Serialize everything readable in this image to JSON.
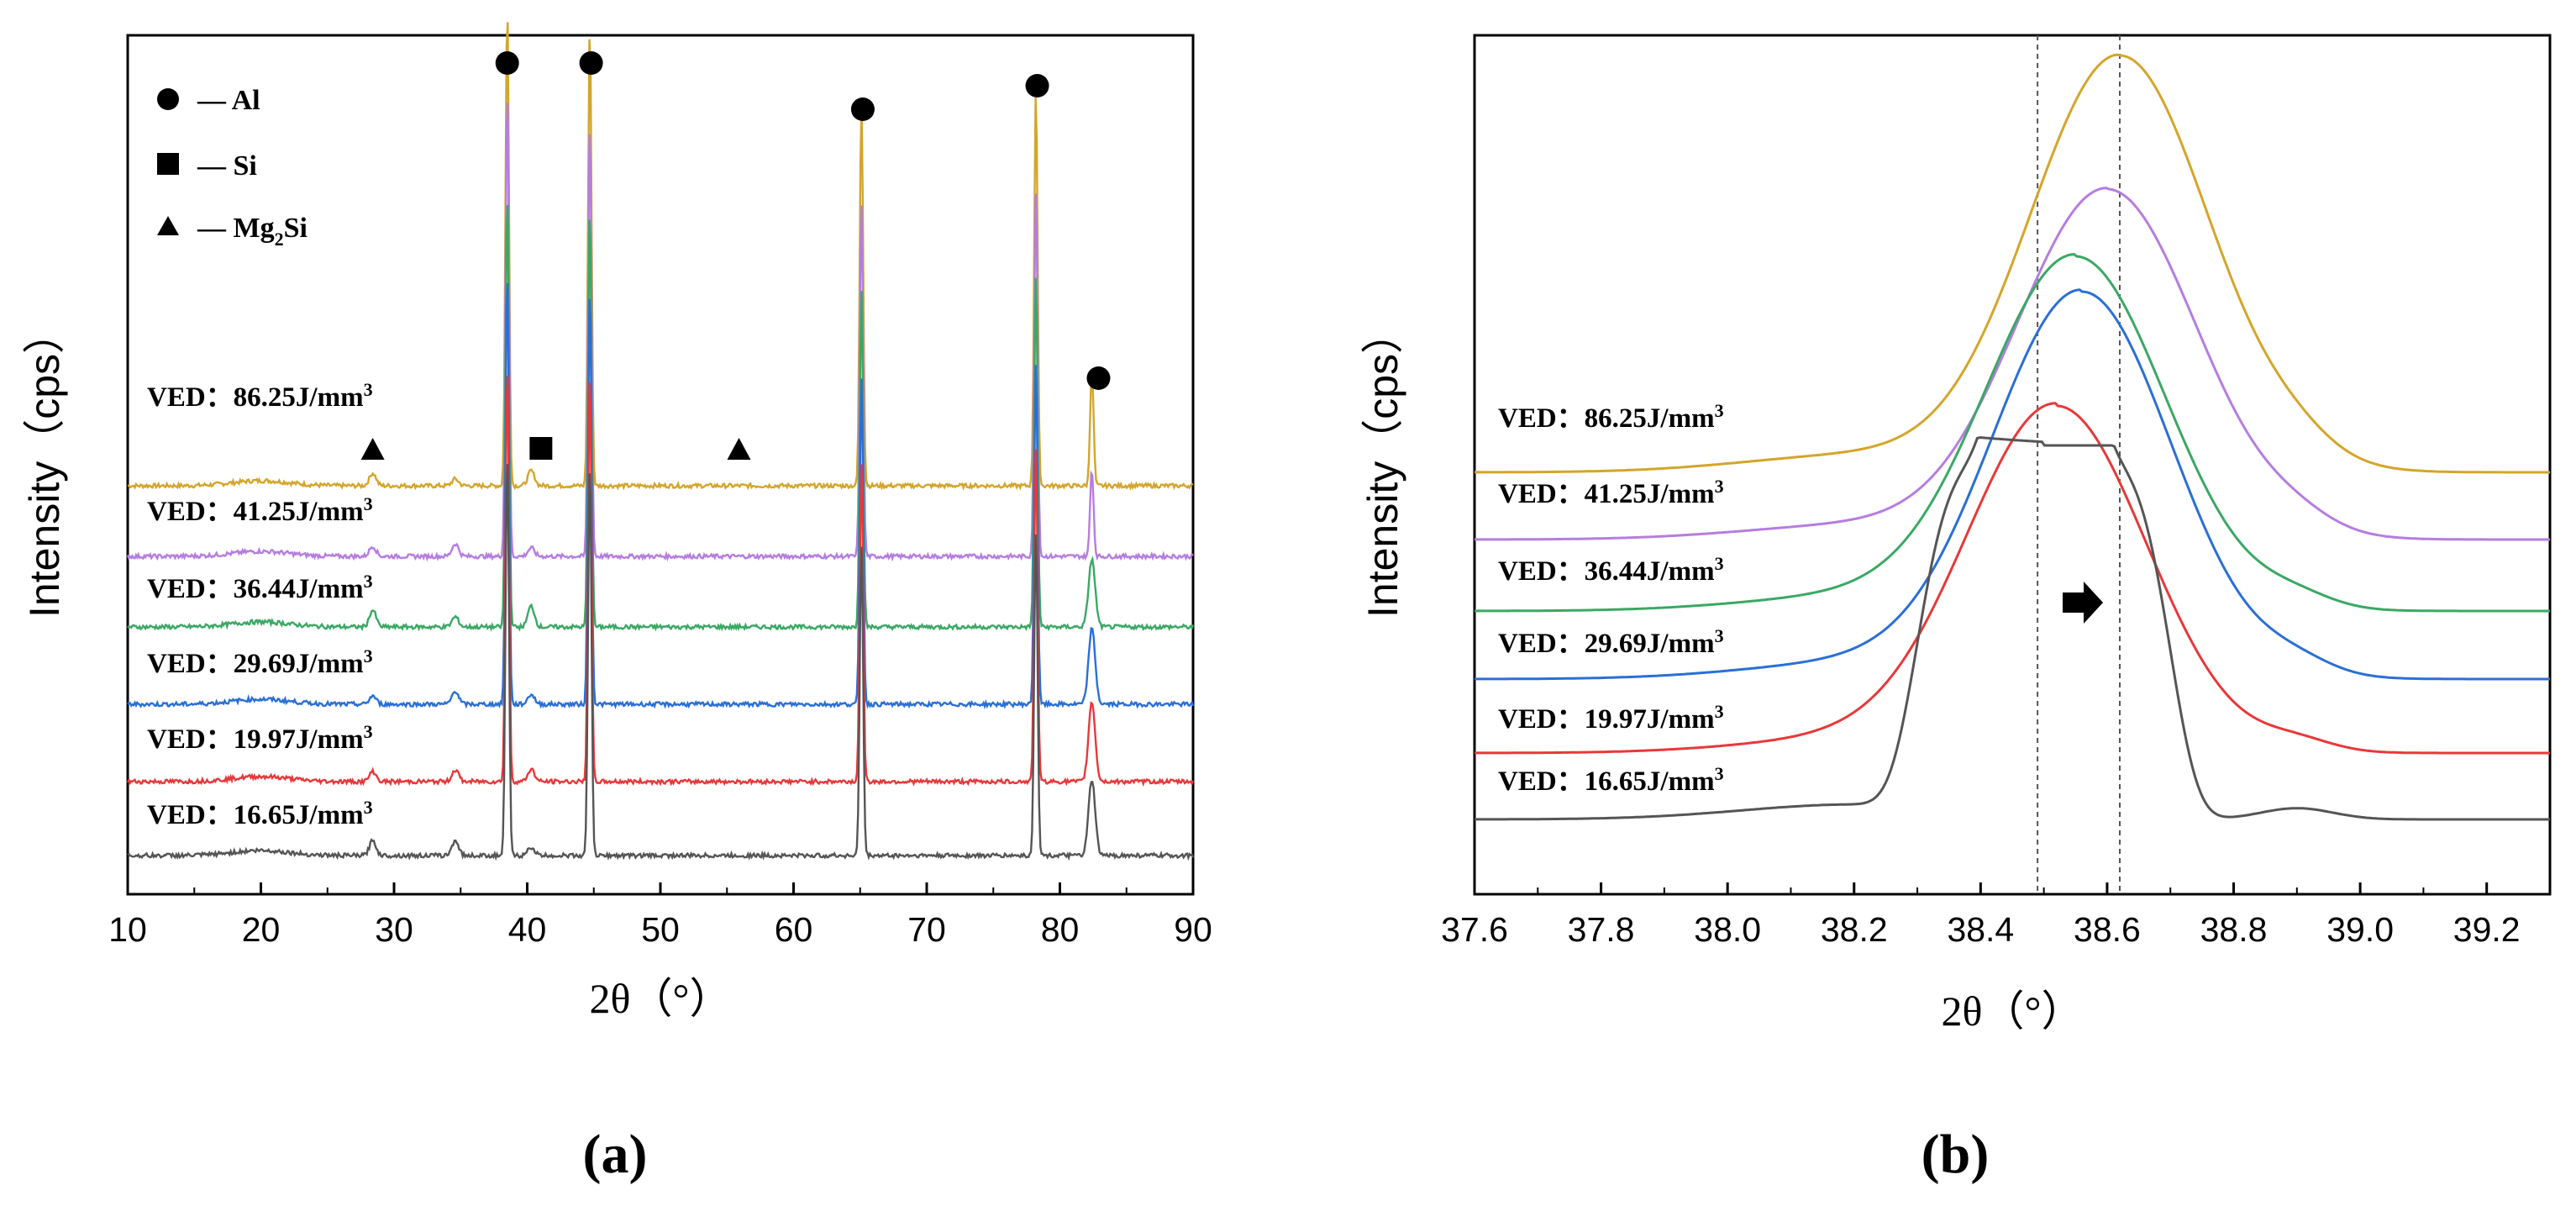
{
  "chart_data": [
    {
      "panel_label": "(a)",
      "type": "line",
      "xlabel": "2θ（°）",
      "ylabel": "Intensity（cps）",
      "xlim": [
        10,
        90
      ],
      "xticks": [
        "10",
        "20",
        "30",
        "40",
        "50",
        "60",
        "70",
        "80",
        "90"
      ],
      "legend": [
        {
          "marker": "circle",
          "label": "— Al"
        },
        {
          "marker": "square",
          "label": "— Si"
        },
        {
          "marker": "triangle",
          "label": "— Mg",
          "sub": "2",
          "suffix": "Si"
        }
      ],
      "series": [
        {
          "name": "VED: 86.25J/mm³",
          "label": "VED：86.25J/mm",
          "sup": "3",
          "color": "#d4a52a",
          "peaks": [
            [
              38.5,
              570
            ],
            [
              44.7,
              550
            ],
            [
              65.1,
              460
            ],
            [
              78.2,
              470
            ],
            [
              82.4,
              140
            ],
            [
              28.4,
              15
            ],
            [
              40.3,
              18
            ],
            [
              34.6,
              8
            ]
          ]
        },
        {
          "name": "VED: 41.25J/mm³",
          "label": "VED：41.25J/mm",
          "sup": "3",
          "color": "#b57de0",
          "peaks": [
            [
              38.5,
              560
            ],
            [
              44.7,
              520
            ],
            [
              65.1,
              420
            ],
            [
              78.2,
              440
            ],
            [
              82.4,
              105
            ],
            [
              28.4,
              12
            ],
            [
              40.3,
              10
            ],
            [
              34.6,
              15
            ]
          ]
        },
        {
          "name": "VED: 36.44J/mm³",
          "label": "VED：36.44J/mm",
          "sup": "3",
          "color": "#3aa864",
          "peaks": [
            [
              38.5,
              520
            ],
            [
              44.7,
              500
            ],
            [
              65.1,
              400
            ],
            [
              78.2,
              420
            ],
            [
              82.4,
              80
            ],
            [
              28.4,
              20
            ],
            [
              40.3,
              25
            ],
            [
              34.6,
              12
            ]
          ]
        },
        {
          "name": "VED: 29.69J/mm³",
          "label": "VED：29.69J/mm",
          "sup": "3",
          "color": "#2a6fd6",
          "peaks": [
            [
              38.5,
              520
            ],
            [
              44.7,
              500
            ],
            [
              65.1,
              390
            ],
            [
              78.2,
              410
            ],
            [
              82.4,
              90
            ],
            [
              28.4,
              10
            ],
            [
              40.3,
              12
            ],
            [
              34.6,
              16
            ]
          ]
        },
        {
          "name": "VED: 19.97J/mm³",
          "label": "VED：19.97J/mm",
          "sup": "3",
          "color": "#e8383a",
          "peaks": [
            [
              38.5,
              500
            ],
            [
              44.7,
              490
            ],
            [
              65.1,
              380
            ],
            [
              78.2,
              400
            ],
            [
              82.4,
              95
            ],
            [
              28.4,
              12
            ],
            [
              40.3,
              15
            ],
            [
              34.6,
              14
            ]
          ]
        },
        {
          "name": "VED: 16.65J/mm³",
          "label": "VED：16.65J/mm",
          "sup": "3",
          "color": "#555555",
          "peaks": [
            [
              38.5,
              480
            ],
            [
              44.7,
              470
            ],
            [
              65.1,
              370
            ],
            [
              78.2,
              390
            ],
            [
              82.4,
              90
            ],
            [
              28.4,
              18
            ],
            [
              40.3,
              10
            ],
            [
              34.6,
              18
            ]
          ]
        }
      ],
      "phase_markers": [
        {
          "shape": "circle",
          "x": 38.5
        },
        {
          "shape": "circle",
          "x": 44.8
        },
        {
          "shape": "circle",
          "x": 65.2
        },
        {
          "shape": "circle",
          "x": 78.3
        },
        {
          "shape": "circle",
          "x": 82.9
        },
        {
          "shape": "triangle",
          "x": 28.4
        },
        {
          "shape": "square",
          "x": 41.0
        },
        {
          "shape": "triangle",
          "x": 55.9
        }
      ]
    },
    {
      "panel_label": "(b)",
      "type": "line",
      "xlabel": "2θ（°）",
      "ylabel": "Intensity（cps）",
      "xlim": [
        37.6,
        39.3
      ],
      "xticks": [
        "37.6",
        "37.8",
        "38.0",
        "38.2",
        "38.4",
        "38.6",
        "38.8",
        "39.0",
        "39.2"
      ],
      "reference_lines": [
        38.49,
        38.62
      ],
      "annotation": "arrow pointing right (peak shift to higher angle)",
      "series": [
        {
          "name": "VED: 86.25J/mm³",
          "label": "VED：86.25J/mm",
          "sup": "3",
          "color": "#d4a52a",
          "peak_center": 38.62,
          "peak_height": 500,
          "baseline": 0
        },
        {
          "name": "VED: 41.25J/mm³",
          "label": "VED：41.25J/mm",
          "sup": "3",
          "color": "#b57de0",
          "peak_center": 38.6,
          "peak_height": 425,
          "baseline": 0
        },
        {
          "name": "VED: 36.44J/mm³",
          "label": "VED：36.44J/mm",
          "sup": "3",
          "color": "#3aa864",
          "peak_center": 38.55,
          "peak_height": 400,
          "baseline": 0
        },
        {
          "name": "VED: 29.69J/mm³",
          "label": "VED：29.69J/mm",
          "sup": "3",
          "color": "#2a6fd6",
          "peak_center": 38.56,
          "peak_height": 400,
          "baseline": 0
        },
        {
          "name": "VED: 19.97J/mm³",
          "label": "VED：19.97J/mm",
          "sup": "3",
          "color": "#e8383a",
          "peak_center": 38.52,
          "peak_height": 400,
          "baseline": 0
        },
        {
          "name": "VED: 16.65J/mm³",
          "label": "VED：16.65J/mm",
          "sup": "3",
          "color": "#555555",
          "peak_center": 38.5,
          "peak_height": 400,
          "baseline": 0,
          "double_peak": true
        }
      ]
    }
  ]
}
